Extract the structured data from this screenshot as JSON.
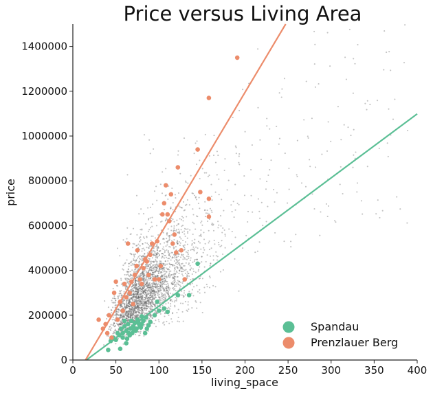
{
  "chart_data": {
    "type": "scatter",
    "title": "Price versus Living Area",
    "xlabel": "living_space",
    "ylabel": "price",
    "xlim": [
      0,
      400
    ],
    "ylim": [
      0,
      1500000
    ],
    "xticks": [
      "0",
      "50",
      "100",
      "150",
      "200",
      "250",
      "300",
      "350",
      "400"
    ],
    "yticks": [
      "0",
      "200000",
      "400000",
      "600000",
      "800000",
      "1000000",
      "1200000",
      "1400000"
    ],
    "grid": false,
    "legend_position": "bottom-right",
    "background": {
      "color": "#666666",
      "point_count": 3000
    },
    "series": [
      {
        "name": "Spandau",
        "color": "#5bbf95",
        "regression_line": {
          "slope": 2860,
          "intercept": -45000
        },
        "points": [
          [
            41,
            45000
          ],
          [
            44,
            85000
          ],
          [
            47,
            100000
          ],
          [
            50,
            90000
          ],
          [
            52,
            120000
          ],
          [
            54,
            110000
          ],
          [
            56,
            140000
          ],
          [
            58,
            120000
          ],
          [
            60,
            150000
          ],
          [
            62,
            130000
          ],
          [
            64,
            160000
          ],
          [
            65,
            120000
          ],
          [
            67,
            140000
          ],
          [
            68,
            175000
          ],
          [
            70,
            150000
          ],
          [
            72,
            165000
          ],
          [
            74,
            140000
          ],
          [
            76,
            170000
          ],
          [
            78,
            150000
          ],
          [
            80,
            160000
          ],
          [
            82,
            175000
          ],
          [
            84,
            120000
          ],
          [
            86,
            140000
          ],
          [
            88,
            155000
          ],
          [
            90,
            170000
          ],
          [
            60,
            175000
          ],
          [
            55,
            50000
          ],
          [
            63,
            95000
          ],
          [
            69,
            120000
          ],
          [
            73,
            130000
          ],
          [
            77,
            160000
          ],
          [
            79,
            145000
          ],
          [
            75,
            180000
          ],
          [
            71,
            135000
          ],
          [
            66,
            110000
          ],
          [
            58,
            100000
          ],
          [
            62,
            75000
          ],
          [
            85,
            190000
          ],
          [
            95,
            200000
          ],
          [
            100,
            220000
          ],
          [
            110,
            215000
          ],
          [
            122,
            290000
          ],
          [
            135,
            290000
          ],
          [
            145,
            430000
          ],
          [
            98,
            260000
          ],
          [
            106,
            230000
          ],
          [
            80,
            195000
          ]
        ]
      },
      {
        "name": "Prenzlauer Berg",
        "color": "#ec8c6b",
        "regression_line": {
          "slope": 6450,
          "intercept": -95000
        },
        "points": [
          [
            30,
            180000
          ],
          [
            35,
            140000
          ],
          [
            38,
            160000
          ],
          [
            40,
            120000
          ],
          [
            42,
            200000
          ],
          [
            45,
            100000
          ],
          [
            48,
            300000
          ],
          [
            50,
            350000
          ],
          [
            52,
            180000
          ],
          [
            55,
            260000
          ],
          [
            58,
            220000
          ],
          [
            60,
            340000
          ],
          [
            62,
            280000
          ],
          [
            64,
            520000
          ],
          [
            66,
            300000
          ],
          [
            68,
            350000
          ],
          [
            70,
            250000
          ],
          [
            72,
            380000
          ],
          [
            74,
            420000
          ],
          [
            75,
            490000
          ],
          [
            78,
            360000
          ],
          [
            80,
            340000
          ],
          [
            82,
            410000
          ],
          [
            84,
            450000
          ],
          [
            86,
            440000
          ],
          [
            88,
            380000
          ],
          [
            90,
            470000
          ],
          [
            92,
            520000
          ],
          [
            95,
            360000
          ],
          [
            98,
            530000
          ],
          [
            100,
            360000
          ],
          [
            102,
            420000
          ],
          [
            104,
            650000
          ],
          [
            106,
            700000
          ],
          [
            108,
            780000
          ],
          [
            110,
            650000
          ],
          [
            112,
            620000
          ],
          [
            114,
            740000
          ],
          [
            116,
            520000
          ],
          [
            118,
            560000
          ],
          [
            120,
            480000
          ],
          [
            122,
            860000
          ],
          [
            126,
            490000
          ],
          [
            130,
            360000
          ],
          [
            145,
            940000
          ],
          [
            148,
            750000
          ],
          [
            158,
            720000
          ],
          [
            158,
            640000
          ],
          [
            158,
            1170000
          ],
          [
            191,
            1350000
          ]
        ]
      }
    ]
  }
}
